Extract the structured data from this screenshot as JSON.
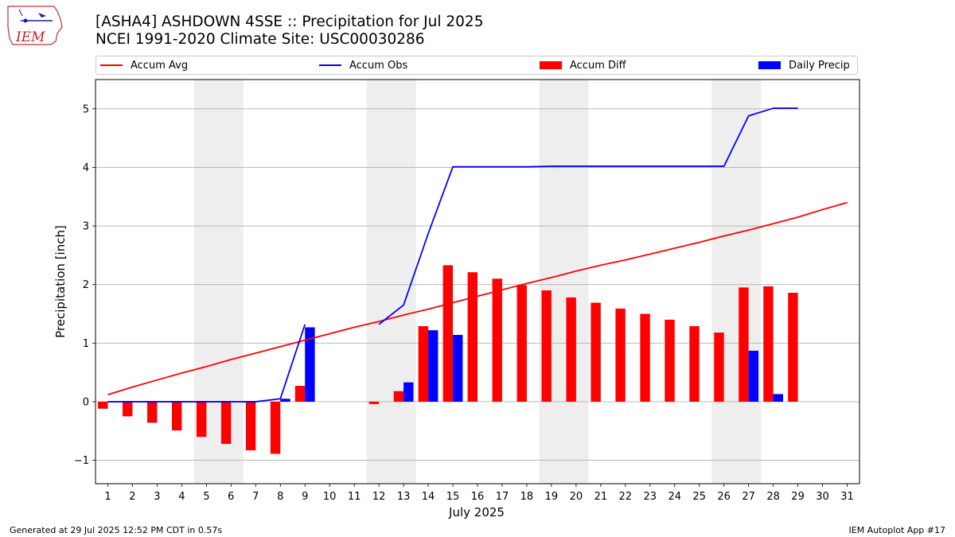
{
  "header": {
    "title_line1": "[ASHA4] ASHDOWN 4SSE :: Precipitation for Jul 2025",
    "title_line2": "NCEI 1991-2020 Climate Site: USC00030286",
    "logo_text": "IEM"
  },
  "footer": {
    "left": "Generated at 29 Jul 2025 12:52 PM CDT in 0.57s",
    "right": "IEM Autoplot App #17"
  },
  "colors": {
    "accum_avg": "#ff0000",
    "accum_obs": "#0000ff",
    "accum_diff": "#ff0000",
    "daily_precip": "#0000ff",
    "weekend_shade": "#eeeeee",
    "grid": "#b0b0b0"
  },
  "chart_data": {
    "type": "bar",
    "xlabel": "July 2025",
    "ylabel": "Precipitation [inch]",
    "xlim": [
      0.5,
      31.5
    ],
    "ylim": [
      -1.4,
      5.5
    ],
    "yticks": [
      -1,
      0,
      1,
      2,
      3,
      4,
      5
    ],
    "ytick_labels": [
      "−1",
      "0",
      "1",
      "2",
      "3",
      "4",
      "5"
    ],
    "grid": "horizontal",
    "legend_placement": "top",
    "days": [
      1,
      2,
      3,
      4,
      5,
      6,
      7,
      8,
      9,
      10,
      11,
      12,
      13,
      14,
      15,
      16,
      17,
      18,
      19,
      20,
      21,
      22,
      23,
      24,
      25,
      26,
      27,
      28,
      29,
      30,
      31
    ],
    "weekend_spans": [
      [
        5,
        6
      ],
      [
        12,
        13
      ],
      [
        19,
        20
      ],
      [
        26,
        27
      ]
    ],
    "legend": [
      "Accum Avg",
      "Accum Obs",
      "Accum Diff",
      "Daily Precip"
    ],
    "series": [
      {
        "name": "Accum Avg",
        "kind": "line",
        "x": [
          1,
          2,
          3,
          4,
          5,
          6,
          7,
          8,
          9,
          10,
          11,
          12,
          13,
          14,
          15,
          16,
          17,
          18,
          19,
          20,
          21,
          22,
          23,
          24,
          25,
          26,
          27,
          28,
          29,
          30,
          31
        ],
        "values": [
          0.12,
          0.25,
          0.37,
          0.49,
          0.6,
          0.72,
          0.83,
          0.94,
          1.05,
          1.16,
          1.27,
          1.37,
          1.48,
          1.58,
          1.69,
          1.8,
          1.91,
          2.02,
          2.12,
          2.23,
          2.33,
          2.42,
          2.52,
          2.62,
          2.72,
          2.83,
          2.93,
          3.04,
          3.15,
          3.28,
          3.4
        ]
      },
      {
        "name": "Accum Obs",
        "kind": "line",
        "x": [
          1,
          2,
          3,
          4,
          5,
          6,
          7,
          8,
          9,
          12,
          13,
          14,
          15,
          16,
          17,
          18,
          19,
          20,
          21,
          22,
          23,
          24,
          25,
          26,
          27,
          28,
          29
        ],
        "values": [
          0.0,
          0.0,
          0.0,
          0.0,
          0.0,
          0.0,
          0.0,
          0.05,
          1.32,
          1.32,
          1.65,
          2.87,
          4.01,
          4.01,
          4.01,
          4.01,
          4.02,
          4.02,
          4.02,
          4.02,
          4.02,
          4.02,
          4.02,
          4.02,
          4.88,
          5.01,
          5.01
        ]
      },
      {
        "name": "Accum Diff",
        "kind": "bar",
        "x": [
          1,
          2,
          3,
          4,
          5,
          6,
          7,
          8,
          9,
          12,
          13,
          14,
          15,
          16,
          17,
          18,
          19,
          20,
          21,
          22,
          23,
          24,
          25,
          26,
          27,
          28,
          29
        ],
        "values": [
          -0.12,
          -0.25,
          -0.36,
          -0.49,
          -0.6,
          -0.72,
          -0.83,
          -0.89,
          0.27,
          -0.04,
          0.18,
          1.29,
          2.33,
          2.21,
          2.1,
          1.99,
          1.9,
          1.78,
          1.69,
          1.59,
          1.5,
          1.4,
          1.29,
          1.18,
          1.95,
          1.97,
          1.86
        ]
      },
      {
        "name": "Daily Precip",
        "kind": "bar",
        "x": [
          8,
          9,
          13,
          14,
          15,
          27,
          28
        ],
        "values": [
          0.05,
          1.27,
          0.33,
          1.22,
          1.14,
          0.87,
          0.13
        ]
      }
    ]
  }
}
